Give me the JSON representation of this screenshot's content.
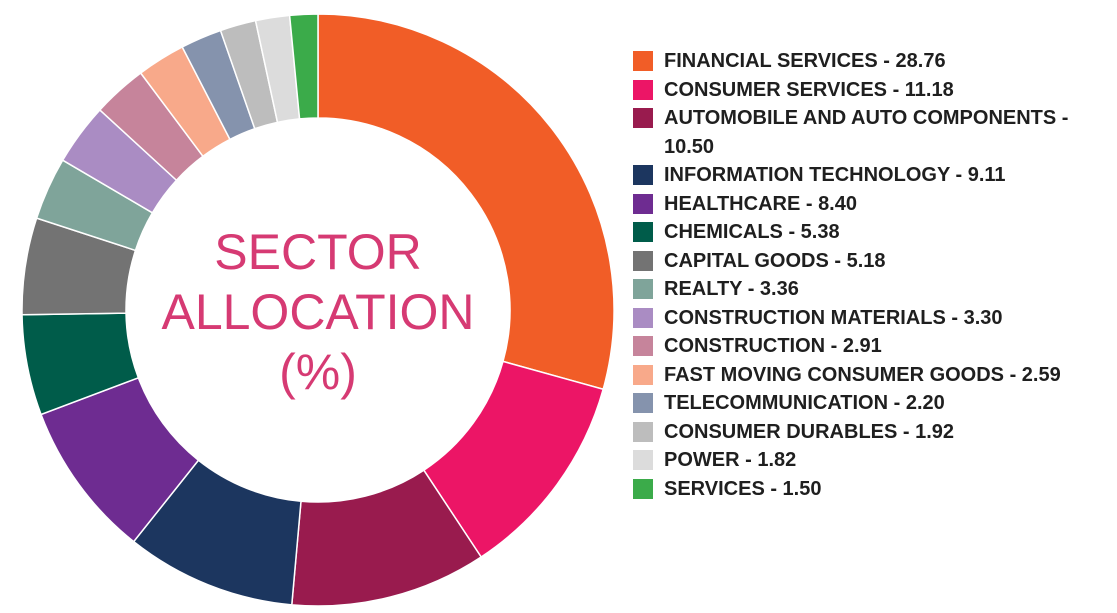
{
  "chart_data": {
    "type": "pie",
    "title": [
      "SECTOR",
      "ALLOCATION",
      "(%)"
    ],
    "legend_position": "right",
    "categories": [
      "FINANCIAL SERVICES - 28.76",
      "CONSUMER SERVICES - 11.18",
      "AUTOMOBILE AND AUTO COMPONENTS - 10.50",
      "INFORMATION TECHNOLOGY - 9.11",
      "HEALTHCARE - 8.40",
      "CHEMICALS - 5.38",
      "CAPITAL GOODS - 5.18",
      "REALTY - 3.36",
      "CONSTRUCTION MATERIALS - 3.30",
      "CONSTRUCTION - 2.91",
      "FAST MOVING CONSUMER GOODS - 2.59",
      "TELECOMMUNICATION - 2.20",
      "CONSUMER DURABLES - 1.92",
      "POWER - 1.82",
      "SERVICES - 1.50"
    ],
    "values": [
      28.76,
      11.18,
      10.5,
      9.11,
      8.4,
      5.38,
      5.18,
      3.36,
      3.3,
      2.91,
      2.59,
      2.2,
      1.92,
      1.82,
      1.5
    ],
    "colors": [
      "#f15d27",
      "#ec1566",
      "#991b4e",
      "#1c365f",
      "#6e2c91",
      "#005c4a",
      "#737373",
      "#7fa49a",
      "#aa8cc3",
      "#c6849b",
      "#f8a98a",
      "#8593ad",
      "#bdbdbd",
      "#dcdcdc",
      "#3bab4a"
    ]
  }
}
